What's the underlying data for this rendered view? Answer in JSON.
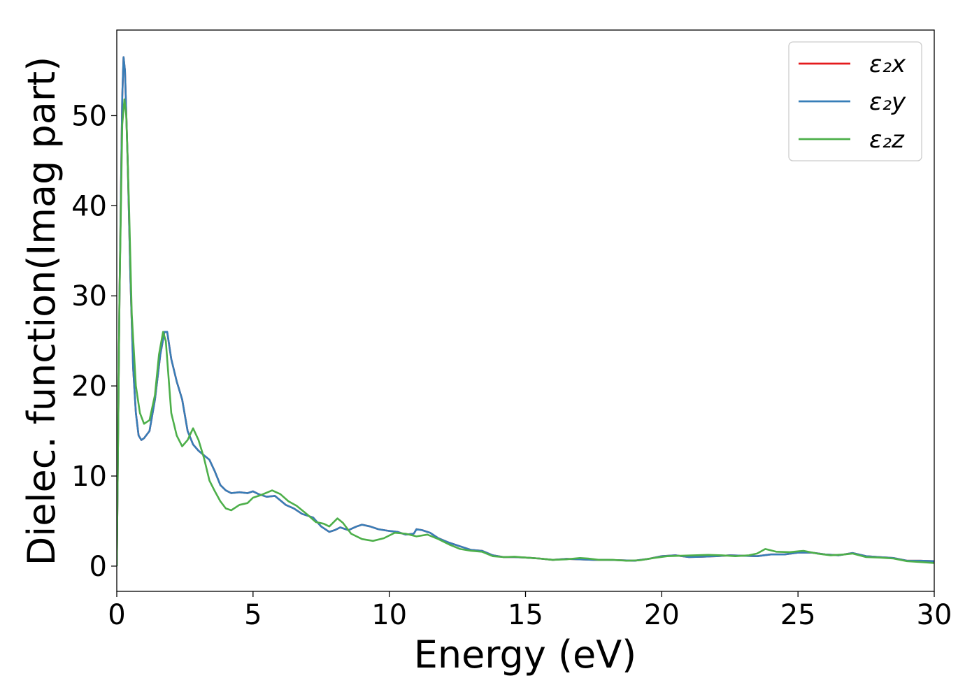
{
  "chart_data": {
    "type": "line",
    "title": "",
    "xlabel": "Energy (eV)",
    "ylabel": "Dielec. function(Imag part)",
    "xlim": [
      0,
      30
    ],
    "ylim": [
      -2.8,
      59.5
    ],
    "xticks": [
      0,
      5,
      10,
      15,
      20,
      25,
      30
    ],
    "yticks": [
      0,
      10,
      20,
      30,
      40,
      50
    ],
    "grid": false,
    "legend_position": "top-right",
    "series": [
      {
        "name": "ε₂x",
        "color": "#e41a1c",
        "points": [
          [
            0,
            0
          ],
          [
            0.1,
            30
          ],
          [
            0.2,
            52
          ],
          [
            0.25,
            56.5
          ],
          [
            0.3,
            55
          ],
          [
            0.4,
            45
          ],
          [
            0.5,
            32
          ],
          [
            0.6,
            22
          ],
          [
            0.7,
            17
          ],
          [
            0.8,
            14.5
          ],
          [
            0.9,
            14
          ],
          [
            1.0,
            14.2
          ],
          [
            1.2,
            15
          ],
          [
            1.4,
            18.5
          ],
          [
            1.6,
            23.5
          ],
          [
            1.75,
            26
          ],
          [
            1.85,
            26
          ],
          [
            2.0,
            23
          ],
          [
            2.2,
            20.5
          ],
          [
            2.4,
            18.5
          ],
          [
            2.6,
            15
          ],
          [
            2.8,
            13.5
          ],
          [
            3.0,
            12.8
          ],
          [
            3.2,
            12.3
          ],
          [
            3.4,
            11.8
          ],
          [
            3.6,
            10.5
          ],
          [
            3.8,
            9
          ],
          [
            4.0,
            8.4
          ],
          [
            4.2,
            8.1
          ],
          [
            4.5,
            8.2
          ],
          [
            4.8,
            8.1
          ],
          [
            5.0,
            8.3
          ],
          [
            5.2,
            8.0
          ],
          [
            5.5,
            7.7
          ],
          [
            5.8,
            7.8
          ],
          [
            6.0,
            7.3
          ],
          [
            6.2,
            6.8
          ],
          [
            6.5,
            6.4
          ],
          [
            6.8,
            5.8
          ],
          [
            7.2,
            5.4
          ],
          [
            7.5,
            4.4
          ],
          [
            7.8,
            3.8
          ],
          [
            8.0,
            4.0
          ],
          [
            8.2,
            4.3
          ],
          [
            8.5,
            4.0
          ],
          [
            8.8,
            4.4
          ],
          [
            9.0,
            4.6
          ],
          [
            9.3,
            4.4
          ],
          [
            9.6,
            4.1
          ],
          [
            10.0,
            3.9
          ],
          [
            10.3,
            3.8
          ],
          [
            10.6,
            3.5
          ],
          [
            10.9,
            3.6
          ],
          [
            11.0,
            4.1
          ],
          [
            11.2,
            4.0
          ],
          [
            11.5,
            3.7
          ],
          [
            11.8,
            3.1
          ],
          [
            12.2,
            2.6
          ],
          [
            12.6,
            2.2
          ],
          [
            13.0,
            1.8
          ],
          [
            13.4,
            1.7
          ],
          [
            13.8,
            1.2
          ],
          [
            14.2,
            1.0
          ],
          [
            14.6,
            1.0
          ],
          [
            15.0,
            0.95
          ],
          [
            15.5,
            0.85
          ],
          [
            16.0,
            0.7
          ],
          [
            16.5,
            0.8
          ],
          [
            17.0,
            0.75
          ],
          [
            17.5,
            0.7
          ],
          [
            18.0,
            0.7
          ],
          [
            18.5,
            0.65
          ],
          [
            19.0,
            0.6
          ],
          [
            19.5,
            0.8
          ],
          [
            20.0,
            1.1
          ],
          [
            20.5,
            1.2
          ],
          [
            21.0,
            1.0
          ],
          [
            21.5,
            1.05
          ],
          [
            22.0,
            1.1
          ],
          [
            22.5,
            1.2
          ],
          [
            23.0,
            1.15
          ],
          [
            23.5,
            1.1
          ],
          [
            24.0,
            1.3
          ],
          [
            24.5,
            1.3
          ],
          [
            25.0,
            1.5
          ],
          [
            25.5,
            1.5
          ],
          [
            26.0,
            1.3
          ],
          [
            26.5,
            1.2
          ],
          [
            27.0,
            1.45
          ],
          [
            27.5,
            1.1
          ],
          [
            28.0,
            1.0
          ],
          [
            28.5,
            0.9
          ],
          [
            29.0,
            0.6
          ],
          [
            29.5,
            0.6
          ],
          [
            30.0,
            0.55
          ]
        ]
      },
      {
        "name": "ε₂y",
        "color": "#377eb8",
        "points": [
          [
            0,
            0
          ],
          [
            0.1,
            30
          ],
          [
            0.2,
            52
          ],
          [
            0.25,
            56.5
          ],
          [
            0.3,
            55
          ],
          [
            0.4,
            45
          ],
          [
            0.5,
            32
          ],
          [
            0.6,
            22
          ],
          [
            0.7,
            17
          ],
          [
            0.8,
            14.5
          ],
          [
            0.9,
            14
          ],
          [
            1.0,
            14.2
          ],
          [
            1.2,
            15
          ],
          [
            1.4,
            18.5
          ],
          [
            1.6,
            23.5
          ],
          [
            1.75,
            26
          ],
          [
            1.85,
            26
          ],
          [
            2.0,
            23
          ],
          [
            2.2,
            20.5
          ],
          [
            2.4,
            18.5
          ],
          [
            2.6,
            15
          ],
          [
            2.8,
            13.5
          ],
          [
            3.0,
            12.8
          ],
          [
            3.2,
            12.3
          ],
          [
            3.4,
            11.8
          ],
          [
            3.6,
            10.5
          ],
          [
            3.8,
            9
          ],
          [
            4.0,
            8.4
          ],
          [
            4.2,
            8.1
          ],
          [
            4.5,
            8.2
          ],
          [
            4.8,
            8.1
          ],
          [
            5.0,
            8.3
          ],
          [
            5.2,
            8.0
          ],
          [
            5.5,
            7.7
          ],
          [
            5.8,
            7.8
          ],
          [
            6.0,
            7.3
          ],
          [
            6.2,
            6.8
          ],
          [
            6.5,
            6.4
          ],
          [
            6.8,
            5.8
          ],
          [
            7.2,
            5.4
          ],
          [
            7.5,
            4.4
          ],
          [
            7.8,
            3.8
          ],
          [
            8.0,
            4.0
          ],
          [
            8.2,
            4.3
          ],
          [
            8.5,
            4.0
          ],
          [
            8.8,
            4.4
          ],
          [
            9.0,
            4.6
          ],
          [
            9.3,
            4.4
          ],
          [
            9.6,
            4.1
          ],
          [
            10.0,
            3.9
          ],
          [
            10.3,
            3.8
          ],
          [
            10.6,
            3.5
          ],
          [
            10.9,
            3.6
          ],
          [
            11.0,
            4.1
          ],
          [
            11.2,
            4.0
          ],
          [
            11.5,
            3.7
          ],
          [
            11.8,
            3.1
          ],
          [
            12.2,
            2.6
          ],
          [
            12.6,
            2.2
          ],
          [
            13.0,
            1.8
          ],
          [
            13.4,
            1.7
          ],
          [
            13.8,
            1.2
          ],
          [
            14.2,
            1.0
          ],
          [
            14.6,
            1.0
          ],
          [
            15.0,
            0.95
          ],
          [
            15.5,
            0.85
          ],
          [
            16.0,
            0.7
          ],
          [
            16.5,
            0.8
          ],
          [
            17.0,
            0.75
          ],
          [
            17.5,
            0.7
          ],
          [
            18.0,
            0.7
          ],
          [
            18.5,
            0.65
          ],
          [
            19.0,
            0.6
          ],
          [
            19.5,
            0.8
          ],
          [
            20.0,
            1.1
          ],
          [
            20.5,
            1.2
          ],
          [
            21.0,
            1.0
          ],
          [
            21.5,
            1.05
          ],
          [
            22.0,
            1.1
          ],
          [
            22.5,
            1.2
          ],
          [
            23.0,
            1.15
          ],
          [
            23.5,
            1.1
          ],
          [
            24.0,
            1.3
          ],
          [
            24.5,
            1.3
          ],
          [
            25.0,
            1.5
          ],
          [
            25.5,
            1.5
          ],
          [
            26.0,
            1.3
          ],
          [
            26.5,
            1.2
          ],
          [
            27.0,
            1.45
          ],
          [
            27.5,
            1.1
          ],
          [
            28.0,
            1.0
          ],
          [
            28.5,
            0.9
          ],
          [
            29.0,
            0.6
          ],
          [
            29.5,
            0.6
          ],
          [
            30.0,
            0.55
          ]
        ]
      },
      {
        "name": "ε₂z",
        "color": "#4daf4a",
        "points": [
          [
            0,
            0
          ],
          [
            0.1,
            30
          ],
          [
            0.2,
            49
          ],
          [
            0.28,
            51.8
          ],
          [
            0.35,
            50
          ],
          [
            0.45,
            40
          ],
          [
            0.55,
            28
          ],
          [
            0.7,
            20
          ],
          [
            0.85,
            17
          ],
          [
            1.0,
            15.8
          ],
          [
            1.2,
            16.2
          ],
          [
            1.4,
            19
          ],
          [
            1.55,
            23.5
          ],
          [
            1.7,
            26
          ],
          [
            1.8,
            25
          ],
          [
            1.9,
            21
          ],
          [
            2.0,
            17
          ],
          [
            2.2,
            14.5
          ],
          [
            2.4,
            13.3
          ],
          [
            2.6,
            14
          ],
          [
            2.8,
            15.3
          ],
          [
            3.0,
            14
          ],
          [
            3.2,
            12
          ],
          [
            3.4,
            9.5
          ],
          [
            3.6,
            8.3
          ],
          [
            3.8,
            7.2
          ],
          [
            4.0,
            6.4
          ],
          [
            4.2,
            6.2
          ],
          [
            4.5,
            6.8
          ],
          [
            4.8,
            7.0
          ],
          [
            5.0,
            7.6
          ],
          [
            5.3,
            7.9
          ],
          [
            5.7,
            8.4
          ],
          [
            6.0,
            8.0
          ],
          [
            6.3,
            7.2
          ],
          [
            6.6,
            6.7
          ],
          [
            7.0,
            5.7
          ],
          [
            7.3,
            4.9
          ],
          [
            7.6,
            4.7
          ],
          [
            7.8,
            4.4
          ],
          [
            8.1,
            5.3
          ],
          [
            8.3,
            4.8
          ],
          [
            8.6,
            3.6
          ],
          [
            9.0,
            3.0
          ],
          [
            9.4,
            2.8
          ],
          [
            9.8,
            3.1
          ],
          [
            10.2,
            3.7
          ],
          [
            10.6,
            3.6
          ],
          [
            11.0,
            3.3
          ],
          [
            11.4,
            3.5
          ],
          [
            11.8,
            3.0
          ],
          [
            12.2,
            2.4
          ],
          [
            12.6,
            1.9
          ],
          [
            13.0,
            1.7
          ],
          [
            13.4,
            1.6
          ],
          [
            13.8,
            1.1
          ],
          [
            14.2,
            1.0
          ],
          [
            14.6,
            1.05
          ],
          [
            15.0,
            0.95
          ],
          [
            15.5,
            0.85
          ],
          [
            16.0,
            0.7
          ],
          [
            16.5,
            0.75
          ],
          [
            17.0,
            0.9
          ],
          [
            17.3,
            0.85
          ],
          [
            17.7,
            0.7
          ],
          [
            18.2,
            0.7
          ],
          [
            18.7,
            0.6
          ],
          [
            19.2,
            0.65
          ],
          [
            19.7,
            0.9
          ],
          [
            20.2,
            1.1
          ],
          [
            20.7,
            1.15
          ],
          [
            21.2,
            1.2
          ],
          [
            21.7,
            1.25
          ],
          [
            22.2,
            1.2
          ],
          [
            22.7,
            1.1
          ],
          [
            23.2,
            1.2
          ],
          [
            23.5,
            1.4
          ],
          [
            23.8,
            1.9
          ],
          [
            24.2,
            1.6
          ],
          [
            24.7,
            1.55
          ],
          [
            25.2,
            1.7
          ],
          [
            25.7,
            1.4
          ],
          [
            26.2,
            1.2
          ],
          [
            26.7,
            1.3
          ],
          [
            27.0,
            1.4
          ],
          [
            27.5,
            1.0
          ],
          [
            28.0,
            0.95
          ],
          [
            28.5,
            0.85
          ],
          [
            29.0,
            0.55
          ],
          [
            29.5,
            0.45
          ],
          [
            30.0,
            0.35
          ]
        ]
      }
    ]
  }
}
